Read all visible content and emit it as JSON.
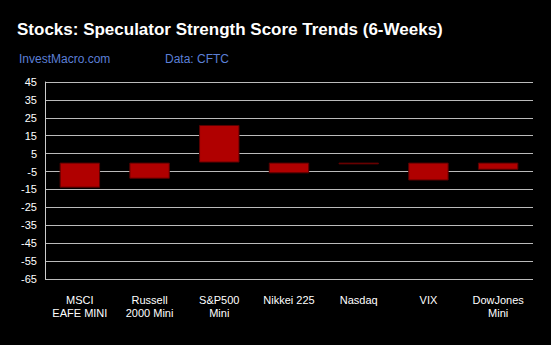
{
  "chart_data": {
    "type": "bar",
    "title": "Stocks: Speculator Strength Score Trends (6-Weeks)",
    "subtitle": "InvestMacro.com",
    "source": "Data: CFTC",
    "categories": [
      "MSCI\nEAFE MINI",
      "Russell\n2000 Mini",
      "S&P500\nMini",
      "Nikkei 225",
      "Nasdaq",
      "VIX",
      "DowJones\nMini"
    ],
    "values": [
      -14,
      -9,
      21,
      -6,
      -1,
      -10,
      -4
    ],
    "color": "#b00000",
    "ylim": [
      -65,
      45
    ],
    "yticks": [
      -65,
      -55,
      -45,
      -35,
      -25,
      -15,
      -5,
      5,
      15,
      25,
      35,
      45
    ],
    "grid": true
  }
}
